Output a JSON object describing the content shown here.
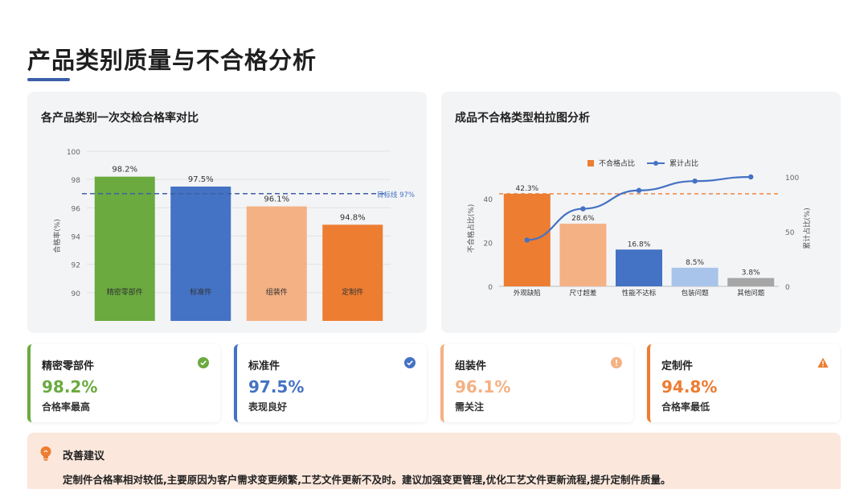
{
  "page_title": "产品类别质量与不合格分析",
  "left_chart": {
    "title": "各产品类别一次交检合格率对比",
    "ylabel": "合格率(%)",
    "target_label": "目标线 97%"
  },
  "right_chart": {
    "title": "成品不合格类型柏拉图分析",
    "ylabel_left": "不合格占比(%)",
    "ylabel_right": "累计占比(%)",
    "legend": [
      "不合格占比",
      "累计占比"
    ]
  },
  "chart_data": [
    {
      "type": "bar",
      "categories": [
        "精密零部件",
        "标准件",
        "组装件",
        "定制件"
      ],
      "values": [
        98.2,
        97.5,
        96.1,
        94.8
      ],
      "value_labels": [
        "98.2%",
        "97.5%",
        "96.1%",
        "94.8%"
      ],
      "colors": [
        "#6aaa3f",
        "#4472c4",
        "#f4b183",
        "#ed7d31"
      ],
      "ylim": [
        88,
        100
      ],
      "yticks": [
        90,
        92,
        94,
        96,
        98,
        100
      ],
      "target": 97,
      "grid": true
    },
    {
      "type": "bar",
      "categories": [
        "外观缺陷",
        "尺寸超差",
        "性能不达标",
        "包装问题",
        "其他问题"
      ],
      "series": [
        {
          "name": "不合格占比",
          "values": [
            42.3,
            28.6,
            16.8,
            8.5,
            3.8
          ],
          "colors": [
            "#ed7d31",
            "#f4b183",
            "#4472c4",
            "#a9c4eb",
            "#a6a6a6"
          ]
        },
        {
          "name": "累计占比",
          "type": "line",
          "values": [
            42.3,
            70.9,
            87.7,
            96.2,
            100
          ],
          "color": "#4472c4",
          "axis": "right"
        }
      ],
      "value_labels": [
        "42.3%",
        "28.6%",
        "16.8%",
        "8.5%",
        "3.8%"
      ],
      "ylim_left": [
        0,
        50
      ],
      "yticks_left": [
        0,
        20,
        40
      ],
      "ylim_right": [
        0,
        100
      ],
      "yticks_right": [
        0,
        50,
        100
      ],
      "reference_line": 42.3,
      "legend_position": "top"
    }
  ],
  "cards": [
    {
      "name": "精密零部件",
      "value": "98.2%",
      "note": "合格率最高",
      "color": "#6aaa3f",
      "icon": "check-circle-icon"
    },
    {
      "name": "标准件",
      "value": "97.5%",
      "note": "表现良好",
      "color": "#4472c4",
      "icon": "check-circle-icon"
    },
    {
      "name": "组装件",
      "value": "96.1%",
      "note": "需关注",
      "color": "#f4b183",
      "icon": "info-circle-icon"
    },
    {
      "name": "定制件",
      "value": "94.8%",
      "note": "合格率最低",
      "color": "#ed7d31",
      "icon": "warning-triangle-icon"
    }
  ],
  "advice": {
    "title": "改善建议",
    "text": "定制件合格率相对较低,主要原因为客户需求变更频繁,工艺文件更新不及时。建议加强变更管理,优化工艺文件更新流程,提升定制件质量。",
    "icon": "lightbulb-icon"
  }
}
